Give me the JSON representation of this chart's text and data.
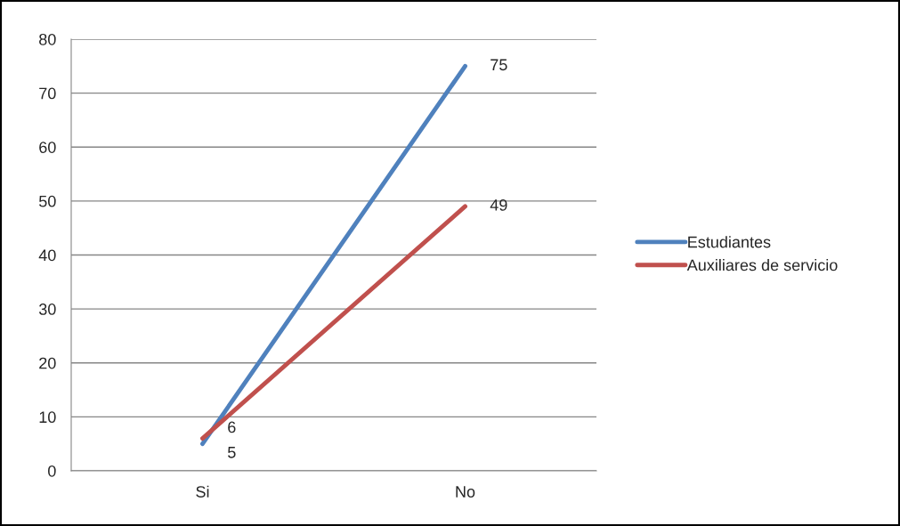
{
  "chart_data": {
    "type": "line",
    "categories": [
      "Si",
      "No"
    ],
    "series": [
      {
        "name": "Estudiantes",
        "color": "#4f81bd",
        "values": [
          5,
          75
        ]
      },
      {
        "name": "Auxiliares de servicio",
        "color": "#c0504d",
        "values": [
          6,
          49
        ]
      }
    ],
    "ylim": [
      0,
      80
    ],
    "yticks": [
      0,
      10,
      20,
      30,
      40,
      50,
      60,
      70,
      80
    ],
    "grid": "y",
    "legend": "right",
    "data_labels": true,
    "marker": "none",
    "line_style": "solid"
  }
}
